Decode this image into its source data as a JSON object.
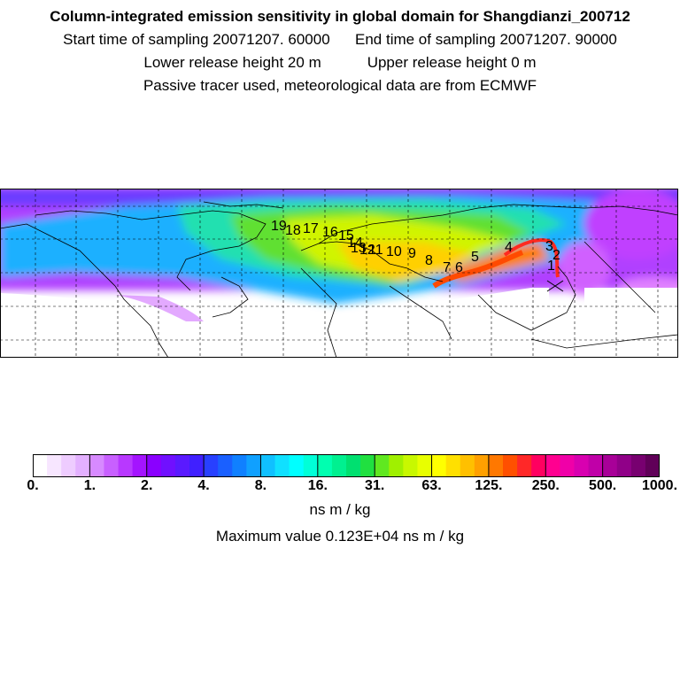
{
  "header": {
    "title": "Column-integrated emission sensitivity in global domain for Shangdianzi_200712",
    "start_label": "Start time of sampling 20071207. 60000",
    "end_label": "End time of sampling 20071207. 90000",
    "lower_label": "Lower release height   20 m",
    "upper_label": "Upper release height    0 m",
    "note": "Passive tracer used, meteorological data are from ECMWF"
  },
  "map": {
    "trajectory_labels": [
      "19",
      "18",
      "17",
      "16",
      "15",
      "14",
      "13",
      "12",
      "11",
      "10",
      "9",
      "8",
      "7",
      "6",
      "5",
      "4",
      "3",
      "2",
      "1"
    ],
    "receptor_marker": "x-marker"
  },
  "colorbar": {
    "colors": [
      "#ffffff",
      "#f7e6ff",
      "#eeccff",
      "#e3b0ff",
      "#d78aff",
      "#c860ff",
      "#b838ff",
      "#a414ff",
      "#8a00ff",
      "#7010ff",
      "#5a1aff",
      "#4020ff",
      "#2840ff",
      "#1a60ff",
      "#1080ff",
      "#10a0ff",
      "#10c0ff",
      "#10e0ff",
      "#00ffff",
      "#00ffd8",
      "#00ffb0",
      "#00f090",
      "#00e070",
      "#20e040",
      "#60e820",
      "#a0f000",
      "#c8f800",
      "#e8ff00",
      "#ffff00",
      "#ffe000",
      "#ffc000",
      "#ffa000",
      "#ff7800",
      "#ff5000",
      "#ff2828",
      "#ff0060",
      "#ff0090",
      "#f000a8",
      "#d800b0",
      "#c000a8",
      "#a80098",
      "#900088",
      "#780070",
      "#600058"
    ],
    "tick_labels": [
      "0.",
      "1.",
      "2.",
      "4.",
      "8.",
      "16.",
      "31.",
      "63.",
      "125.",
      "250.",
      "500.",
      "1000."
    ],
    "units": "ns m / kg"
  },
  "maximum_label": "Maximum value  0.123E+04 ns m / kg"
}
